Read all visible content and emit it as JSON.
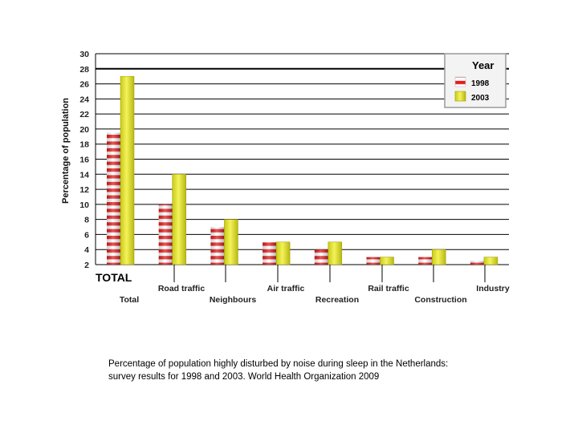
{
  "chart_data": {
    "type": "bar",
    "title": "",
    "xlabel": "",
    "ylabel": "Percentage of population",
    "ylim": [
      2,
      30
    ],
    "yticks": [
      2,
      4,
      6,
      8,
      10,
      12,
      14,
      16,
      18,
      20,
      22,
      24,
      26,
      28,
      30
    ],
    "grid": true,
    "legend": {
      "title": "Year",
      "position": "top-right"
    },
    "categories": [
      "Total",
      "Road traffic",
      "Neighbours",
      "Air traffic",
      "Recreation",
      "Rail traffic",
      "Construction",
      "Industry"
    ],
    "category_heading": "TOTAL",
    "series": [
      {
        "name": "1998",
        "values": [
          19.5,
          10,
          7,
          5,
          4,
          3,
          3,
          2.5
        ],
        "color": "#e41d1d",
        "pattern": "red-white-stripes"
      },
      {
        "name": "2003",
        "values": [
          27,
          14,
          8,
          5,
          5,
          3,
          4,
          3
        ],
        "color": "#e6e62a"
      }
    ]
  },
  "caption": {
    "line1": "Percentage of population highly disturbed by noise during sleep in the Netherlands:",
    "line2": "survey results for 1998 and 2003. World Health Organization 2009"
  }
}
